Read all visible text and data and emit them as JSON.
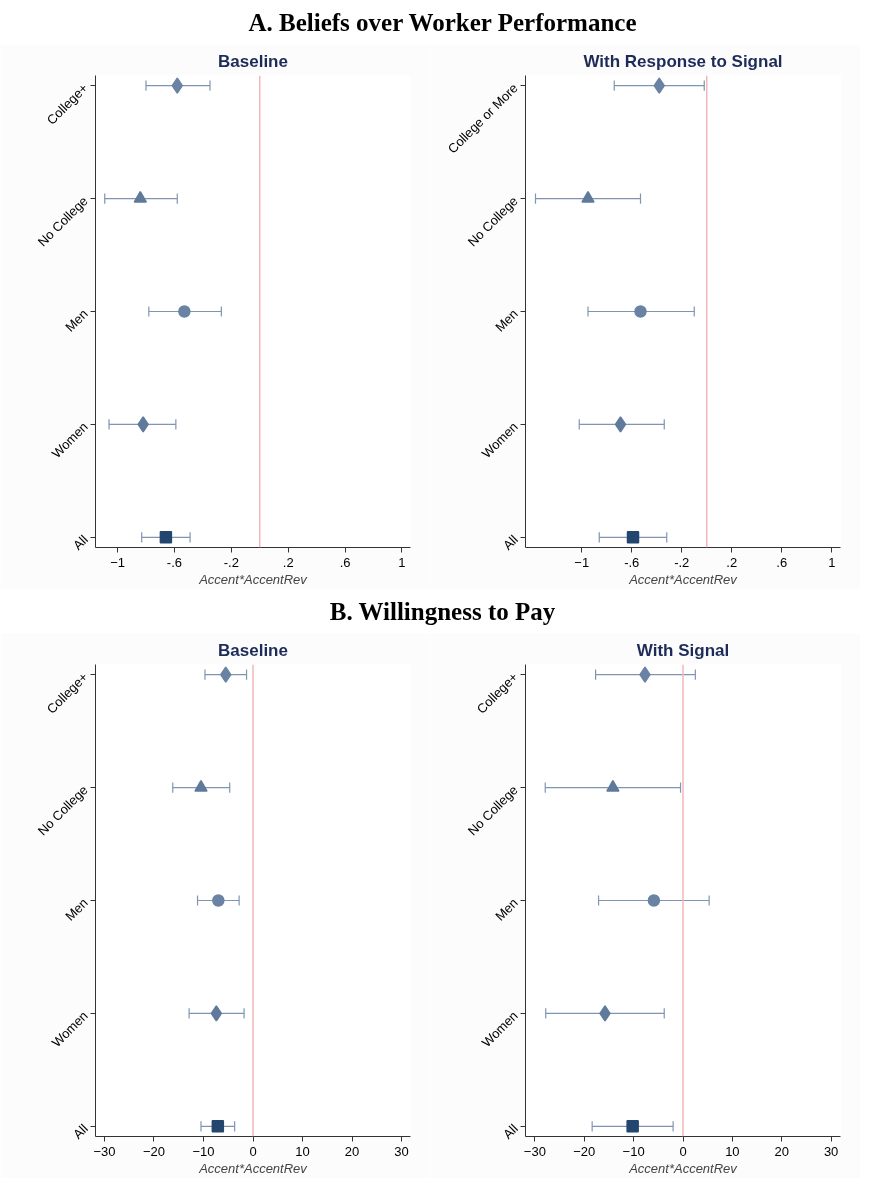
{
  "chart_data": [
    {
      "type": "scatter",
      "orientation": "horizontal",
      "title": "A. Beliefs over Worker Performance",
      "subtitle": "Baseline",
      "xlabel": "Accent*AccentRev",
      "categories": [
        "College+",
        "No College",
        "Men",
        "Women",
        "All"
      ],
      "xlim": [
        -1.155,
        1.06
      ],
      "xticks": [
        -1,
        {
          "value": -0.6,
          "label": "-.6"
        },
        {
          "value": -0.2,
          "label": "-.2"
        },
        {
          "value": 0.2,
          "label": ".2"
        },
        {
          "value": 0.6,
          "label": ".6"
        },
        1
      ],
      "grid": false,
      "ref_lines": [
        {
          "axis": "x",
          "value": 0,
          "color": "#f2b8b8"
        }
      ],
      "series": [
        {
          "marker": "diamond",
          "color": "#6a82a3",
          "values": [
            -0.58,
            null,
            null,
            null,
            null
          ],
          "errors": [
            [
              -0.8,
              -0.35
            ],
            null,
            null,
            null,
            null
          ]
        },
        {
          "marker": "triangle",
          "color": "#5f7a9b",
          "values": [
            null,
            -0.84,
            null,
            null,
            null
          ],
          "errors": [
            null,
            [
              -1.09,
              -0.58
            ],
            null,
            null,
            null
          ]
        },
        {
          "marker": "circle",
          "color": "#6a82a3",
          "values": [
            null,
            null,
            -0.53,
            null,
            null
          ],
          "errors": [
            null,
            null,
            [
              -0.78,
              -0.27
            ],
            null,
            null
          ]
        },
        {
          "marker": "diamond",
          "color": "#5f7a9b",
          "values": [
            null,
            null,
            null,
            -0.82,
            null
          ],
          "errors": [
            null,
            null,
            null,
            [
              -1.06,
              -0.59
            ],
            null
          ]
        },
        {
          "marker": "square",
          "color": "#23466f",
          "values": [
            null,
            null,
            null,
            null,
            -0.66
          ],
          "errors": [
            null,
            null,
            null,
            null,
            [
              -0.83,
              -0.49
            ]
          ]
        }
      ]
    },
    {
      "type": "scatter",
      "orientation": "horizontal",
      "subtitle": "With Response to Signal",
      "xlabel": "Accent*AccentRev",
      "categories": [
        "College or More",
        "No College",
        "Men",
        "Women",
        "All"
      ],
      "xlim": [
        -1.45,
        1.07
      ],
      "xticks": [
        -1,
        {
          "value": -0.6,
          "label": "-.6"
        },
        {
          "value": -0.2,
          "label": "-.2"
        },
        {
          "value": 0.2,
          "label": ".2"
        },
        {
          "value": 0.6,
          "label": ".6"
        },
        1
      ],
      "grid": false,
      "ref_lines": [
        {
          "axis": "x",
          "value": 0,
          "color": "#f2b8b8"
        }
      ],
      "series": [
        {
          "marker": "diamond",
          "color": "#6a82a3",
          "values": [
            -0.38,
            null,
            null,
            null,
            null
          ],
          "errors": [
            [
              -0.74,
              -0.02
            ],
            null,
            null,
            null,
            null
          ]
        },
        {
          "marker": "triangle",
          "color": "#5f7a9b",
          "values": [
            null,
            -0.95,
            null,
            null,
            null
          ],
          "errors": [
            null,
            [
              -1.37,
              -0.53
            ],
            null,
            null,
            null
          ]
        },
        {
          "marker": "circle",
          "color": "#6a82a3",
          "values": [
            null,
            null,
            -0.53,
            null,
            null
          ],
          "errors": [
            null,
            null,
            [
              -0.95,
              -0.1
            ],
            null,
            null
          ]
        },
        {
          "marker": "diamond",
          "color": "#5f7a9b",
          "values": [
            null,
            null,
            null,
            -0.69,
            null
          ],
          "errors": [
            null,
            null,
            null,
            [
              -1.02,
              -0.34
            ],
            null
          ]
        },
        {
          "marker": "square",
          "color": "#23466f",
          "values": [
            null,
            null,
            null,
            null,
            -0.59
          ],
          "errors": [
            null,
            null,
            null,
            null,
            [
              -0.86,
              -0.32
            ]
          ]
        }
      ]
    },
    {
      "type": "scatter",
      "orientation": "horizontal",
      "title": "B. Willingness to Pay",
      "subtitle": "Baseline",
      "xlabel": "Accent*AccentRev",
      "categories": [
        "College+",
        "No College",
        "Men",
        "Women",
        "All"
      ],
      "xlim": [
        -31.8,
        31.8
      ],
      "xticks": [
        -30,
        -20,
        -10,
        0,
        10,
        20,
        30
      ],
      "grid": false,
      "ref_lines": [
        {
          "axis": "x",
          "value": 0,
          "color": "#f2b8b8"
        }
      ],
      "series": [
        {
          "marker": "diamond",
          "color": "#6a82a3",
          "values": [
            -5.5,
            null,
            null,
            null,
            null
          ],
          "errors": [
            [
              -9.7,
              -1.3
            ],
            null,
            null,
            null,
            null
          ]
        },
        {
          "marker": "triangle",
          "color": "#5f7a9b",
          "values": [
            null,
            -10.5,
            null,
            null,
            null
          ],
          "errors": [
            null,
            [
              -16.2,
              -4.7
            ],
            null,
            null,
            null
          ]
        },
        {
          "marker": "circle",
          "color": "#6a82a3",
          "values": [
            null,
            null,
            -7.0,
            null,
            null
          ],
          "errors": [
            null,
            null,
            [
              -11.2,
              -2.8
            ],
            null,
            null
          ]
        },
        {
          "marker": "diamond",
          "color": "#5f7a9b",
          "values": [
            null,
            null,
            null,
            -7.4,
            null
          ],
          "errors": [
            null,
            null,
            null,
            [
              -12.9,
              -1.8
            ],
            null
          ]
        },
        {
          "marker": "square",
          "color": "#23466f",
          "values": [
            null,
            null,
            null,
            null,
            -7.1
          ],
          "errors": [
            null,
            null,
            null,
            null,
            [
              -10.5,
              -3.7
            ]
          ]
        }
      ]
    },
    {
      "type": "scatter",
      "orientation": "horizontal",
      "subtitle": "With Signal",
      "xlabel": "Accent*AccentRev",
      "categories": [
        "College+",
        "No College",
        "Men",
        "Women",
        "All"
      ],
      "xlim": [
        -31.9,
        31.9
      ],
      "xticks": [
        -30,
        -20,
        -10,
        0,
        10,
        20,
        30
      ],
      "grid": false,
      "ref_lines": [
        {
          "axis": "x",
          "value": 0,
          "color": "#f2b8b8"
        }
      ],
      "series": [
        {
          "marker": "diamond",
          "color": "#6a82a3",
          "values": [
            -7.7,
            null,
            null,
            null,
            null
          ],
          "errors": [
            [
              -17.7,
              2.5
            ],
            null,
            null,
            null,
            null
          ]
        },
        {
          "marker": "triangle",
          "color": "#5f7a9b",
          "values": [
            null,
            -14.2,
            null,
            null,
            null
          ],
          "errors": [
            null,
            [
              -27.9,
              -0.5
            ],
            null,
            null,
            null
          ]
        },
        {
          "marker": "circle",
          "color": "#6a82a3",
          "values": [
            null,
            null,
            -5.9,
            null,
            null
          ],
          "errors": [
            null,
            null,
            [
              -17.1,
              5.3
            ],
            null,
            null
          ]
        },
        {
          "marker": "diamond",
          "color": "#5f7a9b",
          "values": [
            null,
            null,
            null,
            -15.8,
            null
          ],
          "errors": [
            null,
            null,
            null,
            [
              -27.8,
              -3.8
            ],
            null
          ]
        },
        {
          "marker": "square",
          "color": "#23466f",
          "values": [
            null,
            null,
            null,
            null,
            -10.2
          ],
          "errors": [
            null,
            null,
            null,
            null,
            [
              -18.4,
              -2.0
            ]
          ]
        }
      ]
    }
  ]
}
